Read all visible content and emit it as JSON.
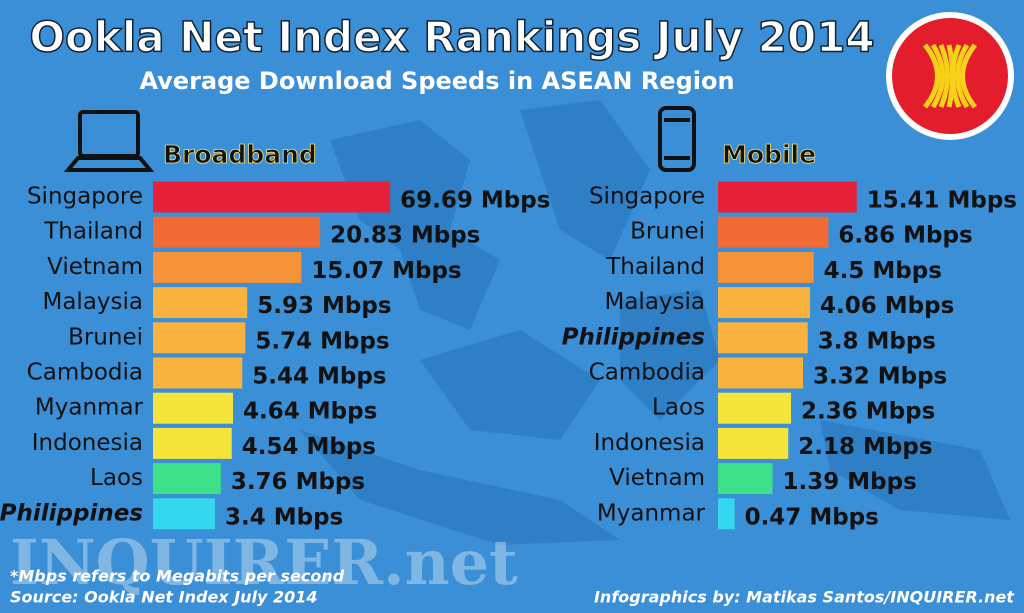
{
  "header": {
    "title": "Ookla Net Index Rankings July 2014",
    "subtitle": "Average Download Speeds in ASEAN Region"
  },
  "chart_data": [
    {
      "type": "bar",
      "orientation": "horizontal",
      "log_scale": true,
      "title": "Broadband",
      "categories": [
        "Singapore",
        "Thailand",
        "Vietnam",
        "Malaysia",
        "Brunei",
        "Cambodia",
        "Myanmar",
        "Indonesia",
        "Laos",
        "Philippines"
      ],
      "values": [
        69.69,
        20.83,
        15.07,
        5.93,
        5.74,
        5.44,
        4.64,
        4.54,
        3.76,
        3.4
      ],
      "value_labels": [
        "69.69 Mbps",
        "20.83 Mbps",
        "15.07 Mbps",
        "5.93 Mbps",
        "5.74 Mbps",
        "5.44 Mbps",
        "4.64 Mbps",
        "4.54 Mbps",
        "3.76 Mbps",
        "3.4 Mbps"
      ],
      "colors": [
        "#e8213b",
        "#f26a35",
        "#f5923a",
        "#f9b23e",
        "#f9b23e",
        "#f9b43f",
        "#f5e43c",
        "#f5e43c",
        "#3fe08a",
        "#35d7ef"
      ],
      "emphasis": [
        9
      ]
    },
    {
      "type": "bar",
      "orientation": "horizontal",
      "log_scale": true,
      "title": "Mobile",
      "categories": [
        "Singapore",
        "Brunei",
        "Thailand",
        "Malaysia",
        "Philippines",
        "Cambodia",
        "Laos",
        "Indonesia",
        "Vietnam",
        "Myanmar"
      ],
      "values": [
        15.41,
        6.86,
        4.5,
        4.06,
        3.8,
        3.32,
        2.36,
        2.18,
        1.39,
        0.47
      ],
      "value_labels": [
        "15.41 Mbps",
        "6.86 Mbps",
        "4.5 Mbps",
        "4.06 Mbps",
        "3.8 Mbps",
        "3.32 Mbps",
        "2.36 Mbps",
        "2.18 Mbps",
        "1.39 Mbps",
        "0.47 Mbps"
      ],
      "colors": [
        "#e8213b",
        "#f26a35",
        "#f5923a",
        "#f9b23e",
        "#f9b23e",
        "#f9b23e",
        "#f5e43c",
        "#f5e43c",
        "#3fe08a",
        "#35d7ef"
      ],
      "emphasis": [
        4
      ]
    }
  ],
  "footer": {
    "watermark": "INQUIRER.net",
    "note": "*Mbps refers to Megabits per second",
    "source": "Source: Ookla Net Index  July 2014",
    "credit": "Infographics by: Matikas Santos/INQUIRER.net"
  }
}
